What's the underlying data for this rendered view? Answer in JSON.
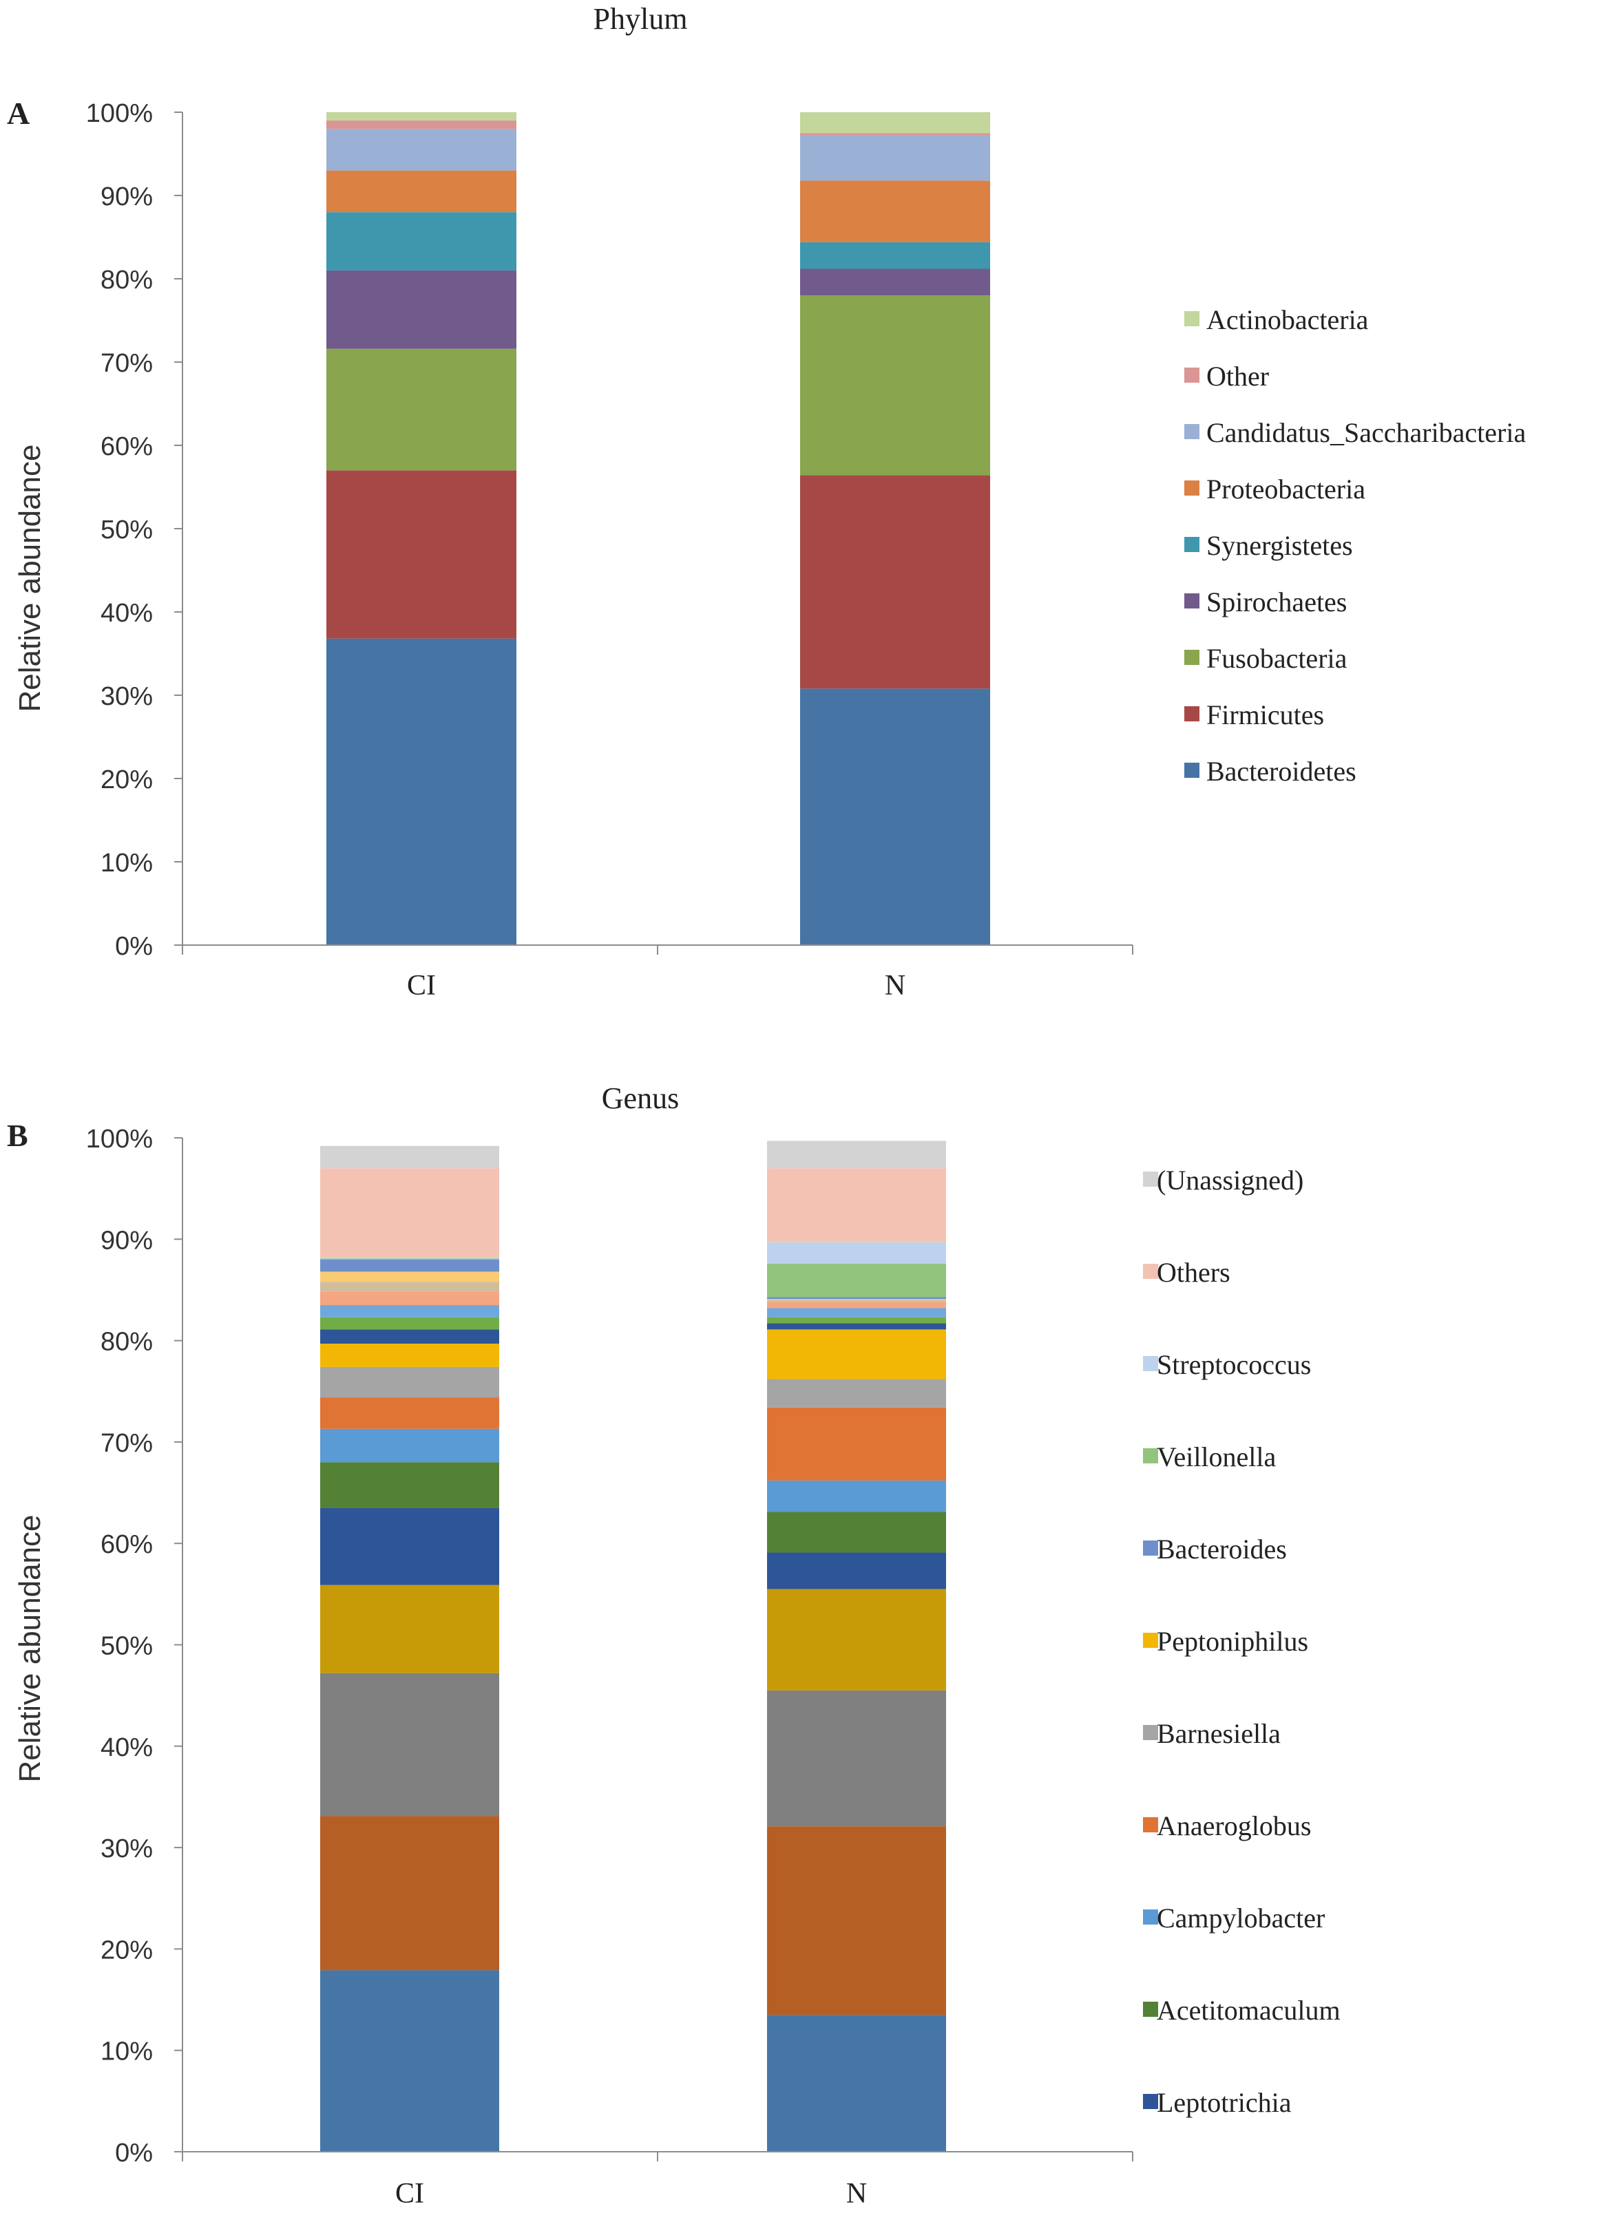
{
  "chart_data": [
    {
      "panel_letter": "A",
      "type": "bar",
      "stacked": true,
      "title": "Phylum",
      "xlabel": "",
      "ylabel": "Relative  abundance",
      "ylim": [
        0,
        100
      ],
      "yticks": [
        "0%",
        "10%",
        "20%",
        "30%",
        "40%",
        "50%",
        "60%",
        "70%",
        "80%",
        "90%",
        "100%"
      ],
      "categories": [
        "CI",
        "N"
      ],
      "legend_position": "right",
      "series": [
        {
          "name": "Bacteroidetes",
          "color": "#4674A5",
          "values": [
            36.8,
            30.8
          ]
        },
        {
          "name": "Firmicutes",
          "color": "#A64946",
          "values": [
            20.2,
            25.6
          ]
        },
        {
          "name": "Fusobacteria",
          "color": "#89A54E",
          "values": [
            14.6,
            21.6
          ]
        },
        {
          "name": "Spirochaetes",
          "color": "#715A8C",
          "values": [
            9.4,
            3.2
          ]
        },
        {
          "name": "Synergistetes",
          "color": "#3E97AD",
          "values": [
            7.0,
            3.2
          ]
        },
        {
          "name": "Proteobacteria",
          "color": "#DA8143",
          "values": [
            5.0,
            7.4
          ]
        },
        {
          "name": "Candidatus_Saccharibacteria",
          "color": "#9BB0D5",
          "values": [
            5.0,
            5.4
          ]
        },
        {
          "name": "Other",
          "color": "#D99694",
          "values": [
            1.0,
            0.3
          ]
        },
        {
          "name": "Actinobacteria",
          "color": "#C3D69B",
          "values": [
            1.0,
            2.5
          ]
        }
      ]
    },
    {
      "panel_letter": "B",
      "type": "bar",
      "stacked": true,
      "title": "Genus",
      "xlabel": "",
      "ylabel": "Relative  abundance",
      "ylim": [
        0,
        100
      ],
      "yticks": [
        "0%",
        "10%",
        "20%",
        "30%",
        "40%",
        "50%",
        "60%",
        "70%",
        "80%",
        "90%",
        "100%"
      ],
      "categories": [
        "CI",
        "N"
      ],
      "legend_position": "right",
      "legend_order": [
        "(Unassigned)",
        "Others",
        "Streptococcus",
        "Veillonella",
        "Bacteroides",
        "Peptoniphilus",
        "Barnesiella",
        "Anaeroglobus",
        "Campylobacter",
        "Acetitomaculum",
        "Leptotrichia"
      ],
      "series": [
        {
          "name": "",
          "color": "#4676A6",
          "values": [
            17.9,
            13.5
          ],
          "in_legend": false
        },
        {
          "name": "",
          "color": "#B65F25",
          "values": [
            15.2,
            18.6
          ],
          "in_legend": false
        },
        {
          "name": "",
          "color": "#808080",
          "values": [
            14.1,
            13.4
          ],
          "in_legend": false
        },
        {
          "name": "",
          "color": "#C79A08",
          "values": [
            8.7,
            10.0
          ],
          "in_legend": false
        },
        {
          "name": "Leptotrichia",
          "color": "#2E5597",
          "values": [
            7.6,
            3.6
          ],
          "in_legend": true
        },
        {
          "name": "Acetitomaculum",
          "color": "#538135",
          "values": [
            4.5,
            4.0
          ],
          "in_legend": true
        },
        {
          "name": "Campylobacter",
          "color": "#5B9BD5",
          "values": [
            3.3,
            3.1
          ],
          "in_legend": true
        },
        {
          "name": "Anaeroglobus",
          "color": "#E07434",
          "values": [
            3.1,
            7.2
          ],
          "in_legend": true
        },
        {
          "name": "Barnesiella",
          "color": "#A5A5A5",
          "values": [
            3.0,
            2.8
          ],
          "in_legend": true
        },
        {
          "name": "Peptoniphilus",
          "color": "#F2B705",
          "values": [
            2.3,
            4.9
          ],
          "in_legend": true
        },
        {
          "name": "",
          "color": "#2E5597",
          "values": [
            1.4,
            0.6
          ],
          "in_legend": false
        },
        {
          "name": "",
          "color": "#70AD47",
          "values": [
            1.2,
            0.6
          ],
          "in_legend": false
        },
        {
          "name": "",
          "color": "#6FA8DC",
          "values": [
            1.2,
            0.9
          ],
          "in_legend": false
        },
        {
          "name": "",
          "color": "#F4A582",
          "values": [
            1.3,
            0.6
          ],
          "in_legend": false
        },
        {
          "name": "",
          "color": "#D3BC9A",
          "values": [
            1.0,
            0.2
          ],
          "in_legend": false
        },
        {
          "name": "",
          "color": "#F9CB73",
          "values": [
            1.0,
            0.1
          ],
          "in_legend": false
        },
        {
          "name": "Bacteroides",
          "color": "#6F8FCB",
          "values": [
            1.2,
            0.2
          ],
          "in_legend": true
        },
        {
          "name": "Veillonella",
          "color": "#92C47E",
          "values": [
            0.1,
            3.3
          ],
          "in_legend": true
        },
        {
          "name": "Streptococcus",
          "color": "#BDD2EC",
          "values": [
            0.1,
            2.1
          ],
          "in_legend": true
        },
        {
          "name": "Others",
          "color": "#F4C2B2",
          "values": [
            8.8,
            7.3
          ],
          "in_legend": true
        },
        {
          "name": "(Unassigned)",
          "color": "#D3D3D3",
          "values": [
            2.2,
            2.7
          ],
          "in_legend": true
        }
      ]
    }
  ]
}
